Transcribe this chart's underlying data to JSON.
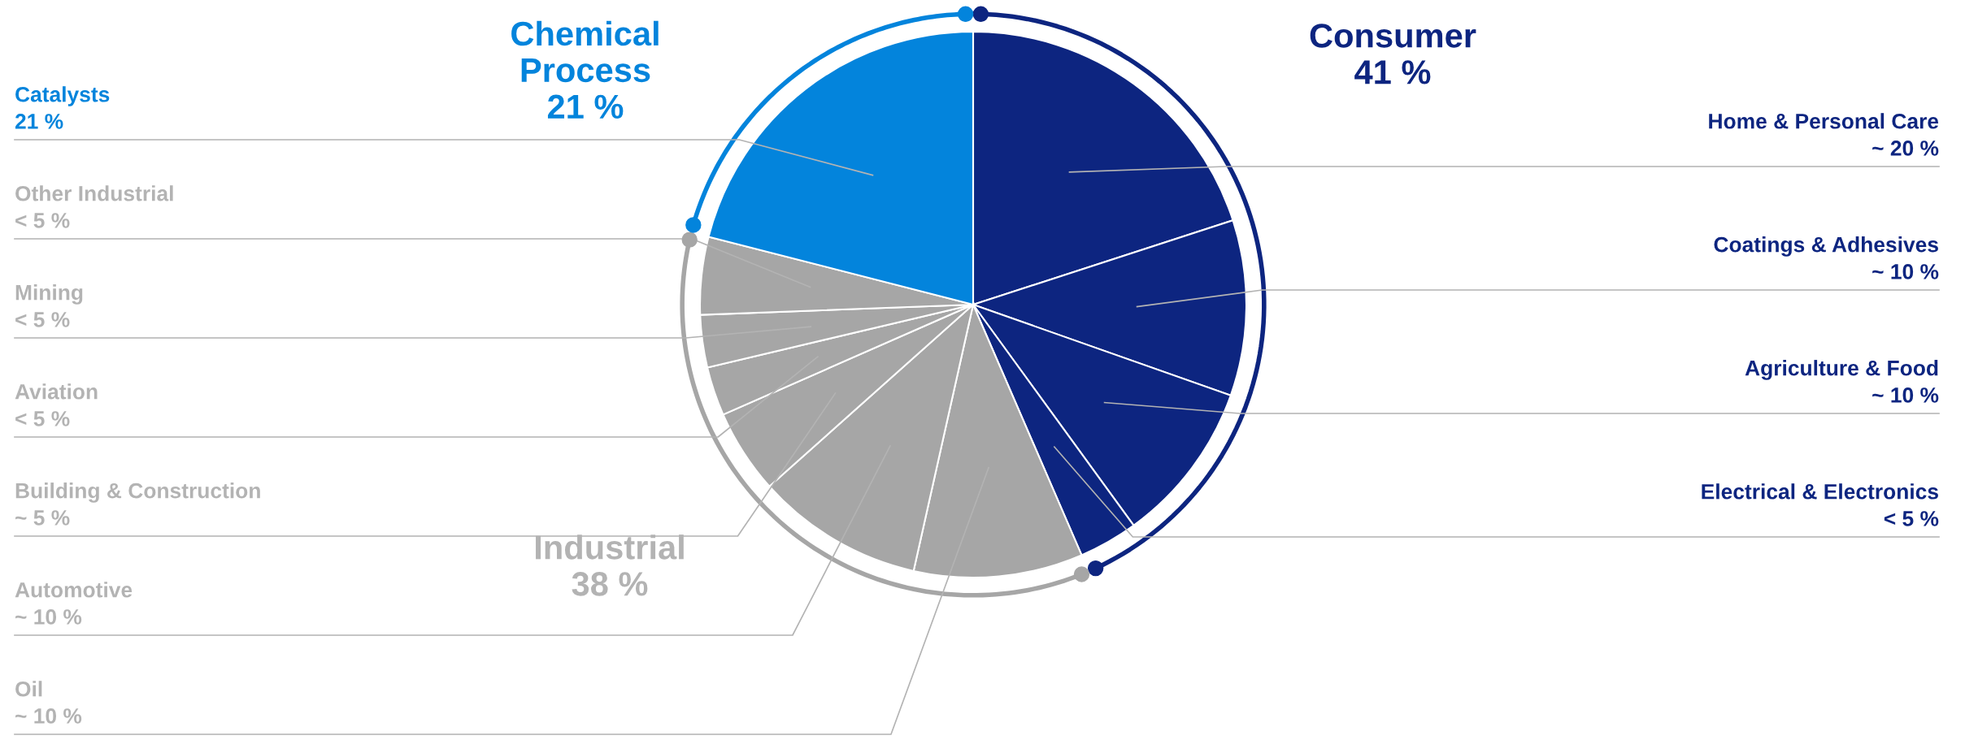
{
  "chart_data": {
    "type": "pie",
    "categories": [
      "Home & Personal Care",
      "Coatings & Adhesives",
      "Agriculture & Food",
      "Electrical & Electronics",
      "Oil",
      "Automotive",
      "Building & Construction",
      "Aviation",
      "Mining",
      "Other Industrial",
      "Catalysts"
    ],
    "values": [
      20,
      10.4,
      9.6,
      3.5,
      10.0,
      9.9,
      5,
      2.9,
      3.1,
      4.6,
      21
    ],
    "colors": [
      "#0d2580",
      "#0d2580",
      "#0d2580",
      "#0d2580",
      "#a6a6a6",
      "#a6a6a6",
      "#a6a6a6",
      "#a6a6a6",
      "#a6a6a6",
      "#a6a6a6",
      "#0384dc"
    ],
    "value_labels": [
      "~ 20 %",
      "~ 10 %",
      "~ 10 %",
      "< 5 %",
      "~ 10 %",
      "~ 10 %",
      "~ 5 %",
      "< 5 %",
      "< 5 %",
      "< 5 %",
      "21 %"
    ],
    "annotations": [
      "Consumer\n41 %",
      "Industrial\n38 %",
      "Chemical\nProcess\n21 %"
    ]
  }
}
